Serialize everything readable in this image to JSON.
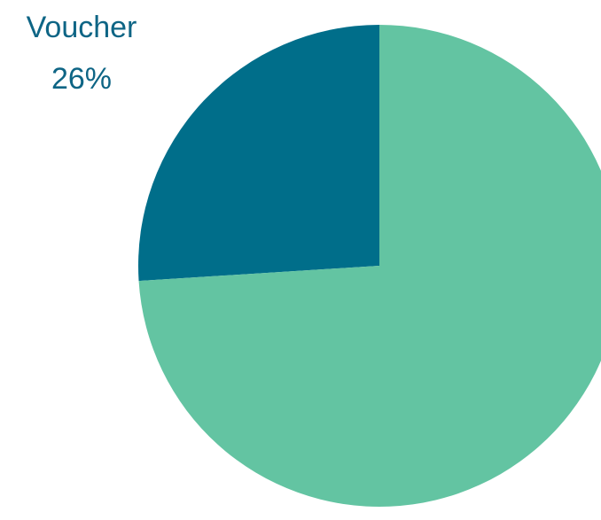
{
  "chart_data": {
    "type": "pie",
    "slices": [
      {
        "name": "Voucher",
        "value": 26,
        "label": "26%",
        "color": "#006e8a",
        "label_color": "#0e6585"
      },
      {
        "name": "",
        "value": 74,
        "label": "",
        "color": "#63c4a2"
      }
    ],
    "title": ""
  }
}
